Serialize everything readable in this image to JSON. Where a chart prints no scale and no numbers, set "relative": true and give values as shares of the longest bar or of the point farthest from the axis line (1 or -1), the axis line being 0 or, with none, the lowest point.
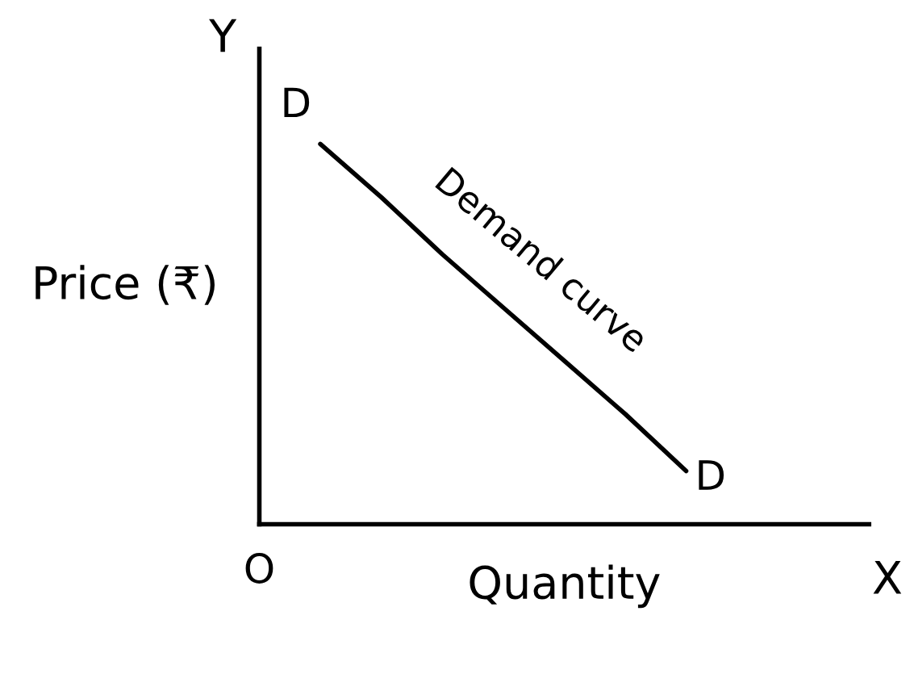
{
  "chart_data": {
    "type": "line",
    "relative": true,
    "color": "#000000",
    "categories": [
      null,
      null,
      null,
      null,
      null,
      null,
      null,
      null,
      null,
      null,
      null
    ],
    "values": [
      null,
      1,
      0.86,
      0.71,
      0.57,
      0.43,
      0.29,
      0.14,
      null,
      null,
      null
    ],
    "xlabel": "Quantity",
    "ylabel": "Price (₹)",
    "annotations": [
      "D",
      "Demand curve",
      "D",
      "Y",
      "X",
      "O"
    ]
  }
}
